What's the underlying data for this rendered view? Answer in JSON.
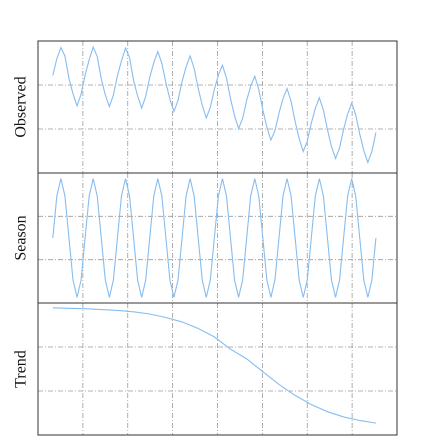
{
  "chart_data": [
    {
      "type": "line",
      "ylabel": "Observed",
      "color": "#86bdf0",
      "grid": true,
      "xlim": [
        0,
        8
      ],
      "xticks": [
        1,
        2,
        3,
        4,
        5,
        6,
        7
      ],
      "ylim": [
        -1.5,
        4.5
      ],
      "yticks": [
        0.5,
        2.5
      ],
      "x": [
        0.33,
        0.42,
        0.51,
        0.6,
        0.69,
        0.78,
        0.87,
        0.96,
        1.05,
        1.14,
        1.23,
        1.32,
        1.41,
        1.5,
        1.59,
        1.68,
        1.77,
        1.86,
        1.95,
        2.04,
        2.13,
        2.22,
        2.31,
        2.4,
        2.49,
        2.58,
        2.67,
        2.76,
        2.85,
        2.94,
        3.03,
        3.12,
        3.21,
        3.3,
        3.39,
        3.48,
        3.57,
        3.66,
        3.75,
        3.84,
        3.93,
        4.02,
        4.11,
        4.2,
        4.29,
        4.38,
        4.47,
        4.56,
        4.65,
        4.74,
        4.83,
        4.92,
        5.01,
        5.1,
        5.19,
        5.28,
        5.37,
        5.46,
        5.55,
        5.64,
        5.73,
        5.82,
        5.91,
        6,
        6.09,
        6.18,
        6.27,
        6.36,
        6.45,
        6.54,
        6.63,
        6.72,
        6.81,
        6.9,
        6.99,
        7.08,
        7.17,
        7.26,
        7.35,
        7.44,
        7.53
      ],
      "values": [
        2.94,
        3.7,
        4.2,
        3.82,
        2.8,
        2.1,
        1.55,
        2.08,
        2.95,
        3.65,
        4.22,
        3.8,
        2.78,
        2.05,
        1.52,
        2.04,
        2.92,
        3.6,
        4.18,
        3.75,
        2.7,
        2.0,
        1.45,
        1.98,
        2.85,
        3.52,
        4.02,
        3.48,
        2.6,
        1.85,
        1.3,
        1.8,
        2.66,
        3.32,
        3.82,
        3.25,
        2.35,
        1.58,
        1.0,
        1.48,
        2.3,
        2.95,
        3.4,
        2.82,
        1.88,
        1.1,
        0.52,
        0.98,
        1.8,
        2.45,
        2.9,
        2.3,
        1.38,
        0.58,
        0.0,
        0.42,
        1.22,
        1.88,
        2.34,
        1.75,
        0.84,
        0.06,
        -0.52,
        -0.06,
        0.76,
        1.44,
        1.92,
        1.36,
        0.47,
        -0.3,
        -0.84,
        -0.36,
        0.48,
        1.18,
        1.68,
        1.14,
        0.27,
        -0.48,
        -1.02,
        -0.52,
        0.34
      ]
    },
    {
      "type": "line",
      "ylabel": "Season",
      "color": "#86bdf0",
      "grid": true,
      "xlim": [
        0,
        8
      ],
      "xticks": [
        1,
        2,
        3,
        4,
        5,
        6,
        7
      ],
      "ylim": [
        0,
        3
      ],
      "yticks": [
        1,
        2
      ],
      "x": [
        0.33,
        0.42,
        0.51,
        0.6,
        0.69,
        0.78,
        0.87,
        0.96,
        1.05,
        1.14,
        1.23,
        1.32,
        1.41,
        1.5,
        1.59,
        1.68,
        1.77,
        1.86,
        1.95,
        2.04,
        2.13,
        2.22,
        2.31,
        2.4,
        2.49,
        2.58,
        2.67,
        2.76,
        2.85,
        2.94,
        3.03,
        3.12,
        3.21,
        3.3,
        3.39,
        3.48,
        3.57,
        3.66,
        3.75,
        3.84,
        3.93,
        4.02,
        4.11,
        4.2,
        4.29,
        4.38,
        4.47,
        4.56,
        4.65,
        4.74,
        4.83,
        4.92,
        5.01,
        5.1,
        5.19,
        5.28,
        5.37,
        5.46,
        5.55,
        5.64,
        5.73,
        5.82,
        5.91,
        6,
        6.09,
        6.18,
        6.27,
        6.36,
        6.45,
        6.54,
        6.63,
        6.72,
        6.81,
        6.9,
        6.99,
        7.08,
        7.17,
        7.26,
        7.35,
        7.44,
        7.53
      ],
      "values": [
        1.5,
        2.47,
        2.87,
        2.47,
        1.5,
        0.53,
        0.13,
        0.53,
        1.5,
        2.47,
        2.87,
        2.47,
        1.5,
        0.53,
        0.13,
        0.53,
        1.5,
        2.47,
        2.87,
        2.47,
        1.5,
        0.53,
        0.13,
        0.53,
        1.5,
        2.47,
        2.87,
        2.47,
        1.5,
        0.53,
        0.13,
        0.53,
        1.5,
        2.47,
        2.87,
        2.47,
        1.5,
        0.53,
        0.13,
        0.53,
        1.5,
        2.47,
        2.87,
        2.47,
        1.5,
        0.53,
        0.13,
        0.53,
        1.5,
        2.47,
        2.87,
        2.47,
        1.5,
        0.53,
        0.13,
        0.53,
        1.5,
        2.47,
        2.87,
        2.47,
        1.5,
        0.53,
        0.13,
        0.53,
        1.5,
        2.47,
        2.87,
        2.47,
        1.5,
        0.53,
        0.13,
        0.53,
        1.5,
        2.47,
        2.87,
        2.47,
        1.5,
        0.53,
        0.13,
        0.53,
        1.5
      ]
    },
    {
      "type": "line",
      "ylabel": "Trend",
      "color": "#86bdf0",
      "grid": true,
      "xlim": [
        0,
        8
      ],
      "xticks": [
        1,
        2,
        3,
        4,
        5,
        6,
        7
      ],
      "ylim": [
        0,
        3
      ],
      "yticks": [
        1,
        2
      ],
      "x": [
        0.33,
        0.69,
        1.05,
        1.41,
        1.77,
        2.13,
        2.49,
        2.85,
        3.21,
        3.57,
        3.93,
        4.29,
        4.65,
        5.01,
        5.37,
        5.73,
        6.09,
        6.45,
        6.81,
        7.17,
        7.53
      ],
      "values": [
        2.89,
        2.88,
        2.87,
        2.85,
        2.83,
        2.8,
        2.75,
        2.67,
        2.57,
        2.42,
        2.23,
        1.95,
        1.73,
        1.44,
        1.15,
        0.9,
        0.69,
        0.53,
        0.41,
        0.33,
        0.27
      ]
    }
  ]
}
